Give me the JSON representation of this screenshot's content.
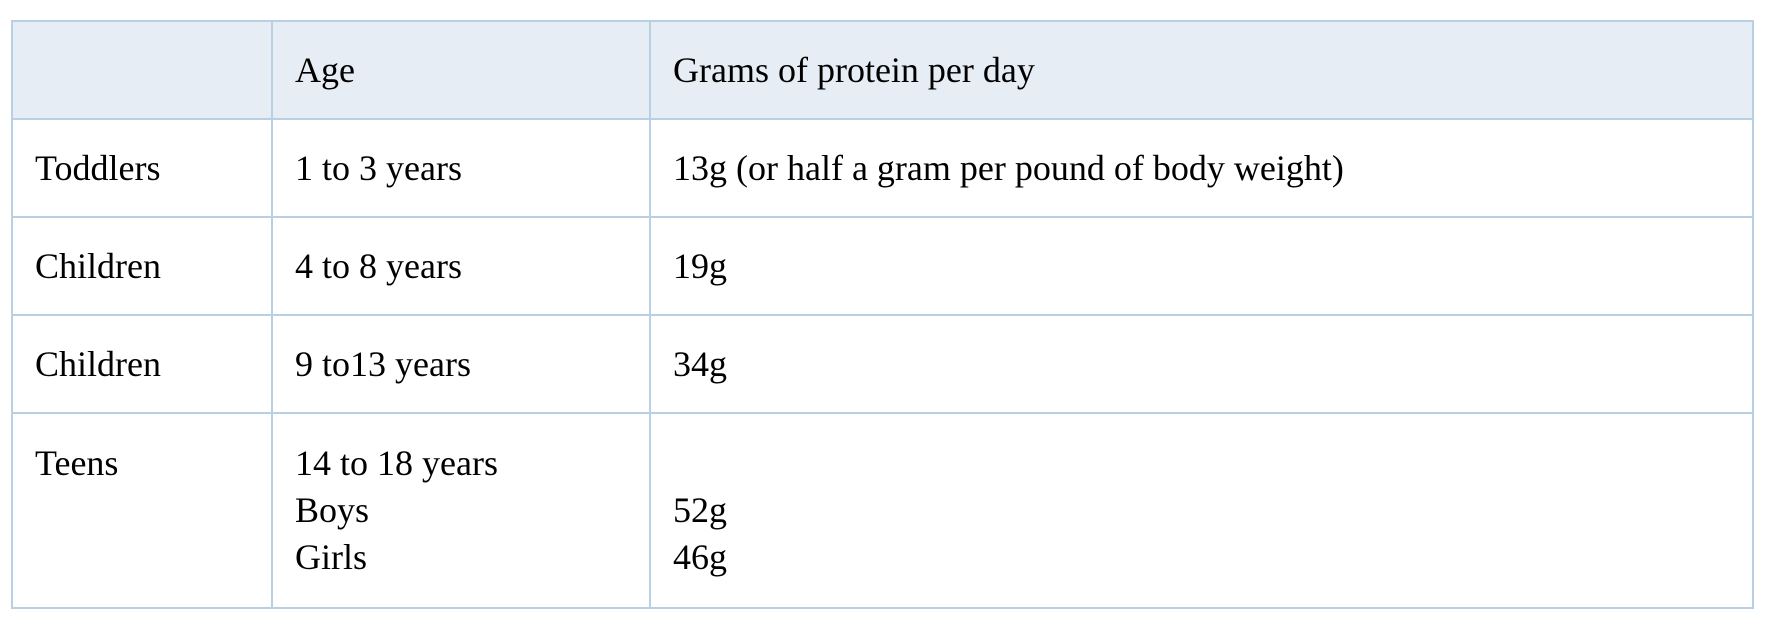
{
  "table": {
    "header": [
      "Age",
      "Grams of protein per day"
    ],
    "rows": [
      {
        "group": "Toddlers",
        "age": [
          "1 to 3 years"
        ],
        "protein": [
          "13g (or half a gram per pound of body weight)"
        ]
      },
      {
        "group": "Children",
        "age": [
          "4 to 8 years"
        ],
        "protein": [
          "19g"
        ]
      },
      {
        "group": "Children",
        "age": [
          "9 to13 years"
        ],
        "protein": [
          "34g"
        ]
      },
      {
        "group": "Teens",
        "age": [
          "14 to 18 years",
          "Boys",
          "Girls"
        ],
        "protein": [
          "52g",
          "46g"
        ]
      }
    ]
  }
}
